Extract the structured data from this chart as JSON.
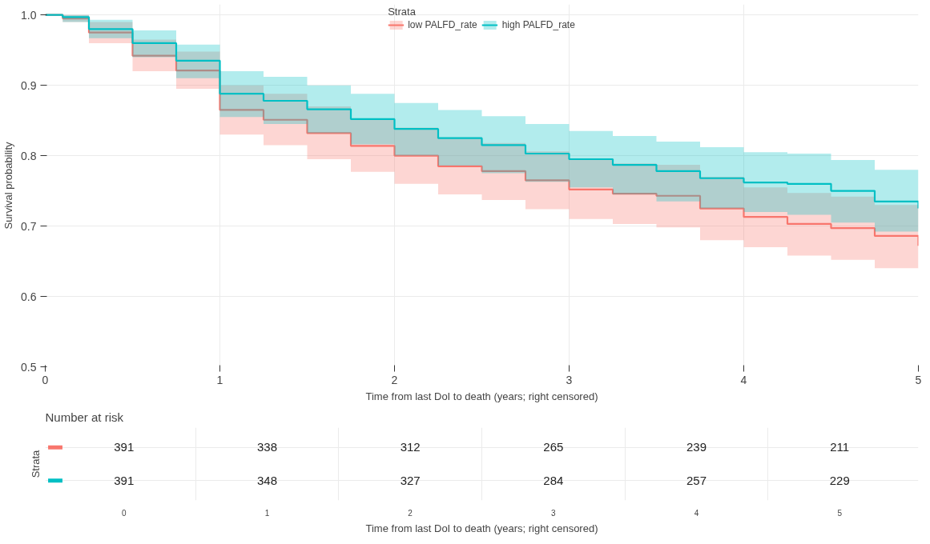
{
  "chart_data": [
    {
      "type": "step",
      "xlabel": "Time from last DoI to death (years; right censored)",
      "ylabel": "Survival probability",
      "legend_title": "Strata",
      "legend": "top",
      "x": [
        0,
        0.1,
        0.25,
        0.5,
        0.75,
        1,
        1.25,
        1.5,
        1.75,
        2,
        2.25,
        2.5,
        2.75,
        3,
        3.25,
        3.5,
        3.75,
        4,
        4.25,
        4.5,
        4.75,
        5
      ],
      "series": [
        {
          "name": "low PALFD_rate",
          "color": "#f8766d",
          "values": [
            1.0,
            0.995,
            0.975,
            0.942,
            0.921,
            0.865,
            0.851,
            0.832,
            0.814,
            0.8,
            0.785,
            0.778,
            0.765,
            0.752,
            0.746,
            0.743,
            0.725,
            0.713,
            0.703,
            0.697,
            0.686,
            0.672
          ],
          "lower": [
            1.0,
            0.99,
            0.96,
            0.92,
            0.895,
            0.83,
            0.815,
            0.795,
            0.777,
            0.76,
            0.745,
            0.737,
            0.724,
            0.71,
            0.703,
            0.698,
            0.68,
            0.67,
            0.658,
            0.652,
            0.64,
            0.63
          ],
          "upper": [
            1.0,
            1.0,
            0.99,
            0.965,
            0.948,
            0.9,
            0.888,
            0.87,
            0.852,
            0.84,
            0.826,
            0.818,
            0.806,
            0.795,
            0.789,
            0.787,
            0.77,
            0.755,
            0.747,
            0.742,
            0.73,
            0.715
          ]
        },
        {
          "name": "high PALFD_rate",
          "color": "#00bfc4",
          "values": [
            1.0,
            0.997,
            0.98,
            0.96,
            0.935,
            0.888,
            0.878,
            0.866,
            0.852,
            0.838,
            0.825,
            0.815,
            0.803,
            0.795,
            0.787,
            0.778,
            0.768,
            0.762,
            0.76,
            0.75,
            0.735,
            0.725
          ],
          "lower": [
            1.0,
            0.99,
            0.967,
            0.94,
            0.91,
            0.855,
            0.845,
            0.832,
            0.816,
            0.8,
            0.786,
            0.775,
            0.763,
            0.755,
            0.745,
            0.735,
            0.725,
            0.72,
            0.716,
            0.705,
            0.692,
            0.685
          ],
          "upper": [
            1.0,
            1.0,
            0.993,
            0.978,
            0.958,
            0.92,
            0.912,
            0.9,
            0.888,
            0.875,
            0.865,
            0.856,
            0.845,
            0.835,
            0.828,
            0.82,
            0.812,
            0.805,
            0.803,
            0.794,
            0.78,
            0.775
          ]
        }
      ],
      "xlim": [
        0,
        5
      ],
      "xticks": [
        0,
        1,
        2,
        3,
        4,
        5
      ],
      "ylim": [
        0.5,
        1.015
      ],
      "yticks": [
        {
          "value": 0.5,
          "label": "0.5"
        },
        {
          "value": 0.6,
          "label": "0.6"
        },
        {
          "value": 0.7,
          "label": "0.7"
        },
        {
          "value": 0.8,
          "label": "0.8"
        },
        {
          "value": 0.9,
          "label": "0.9"
        },
        {
          "value": 1.0,
          "label": "1.0"
        }
      ],
      "grid": true
    },
    {
      "type": "heatmap",
      "title": "Number at risk",
      "ylabel": "Strata",
      "xlabel": "Time from last DoI to death (years; right censored)",
      "categories": [
        "0",
        "1",
        "2",
        "3",
        "4",
        "5"
      ],
      "y_categories": [
        null,
        null
      ],
      "cells": [
        [
          391,
          338,
          312,
          265,
          239,
          211
        ],
        [
          391,
          348,
          327,
          284,
          257,
          229
        ]
      ],
      "data_labels": true
    }
  ]
}
